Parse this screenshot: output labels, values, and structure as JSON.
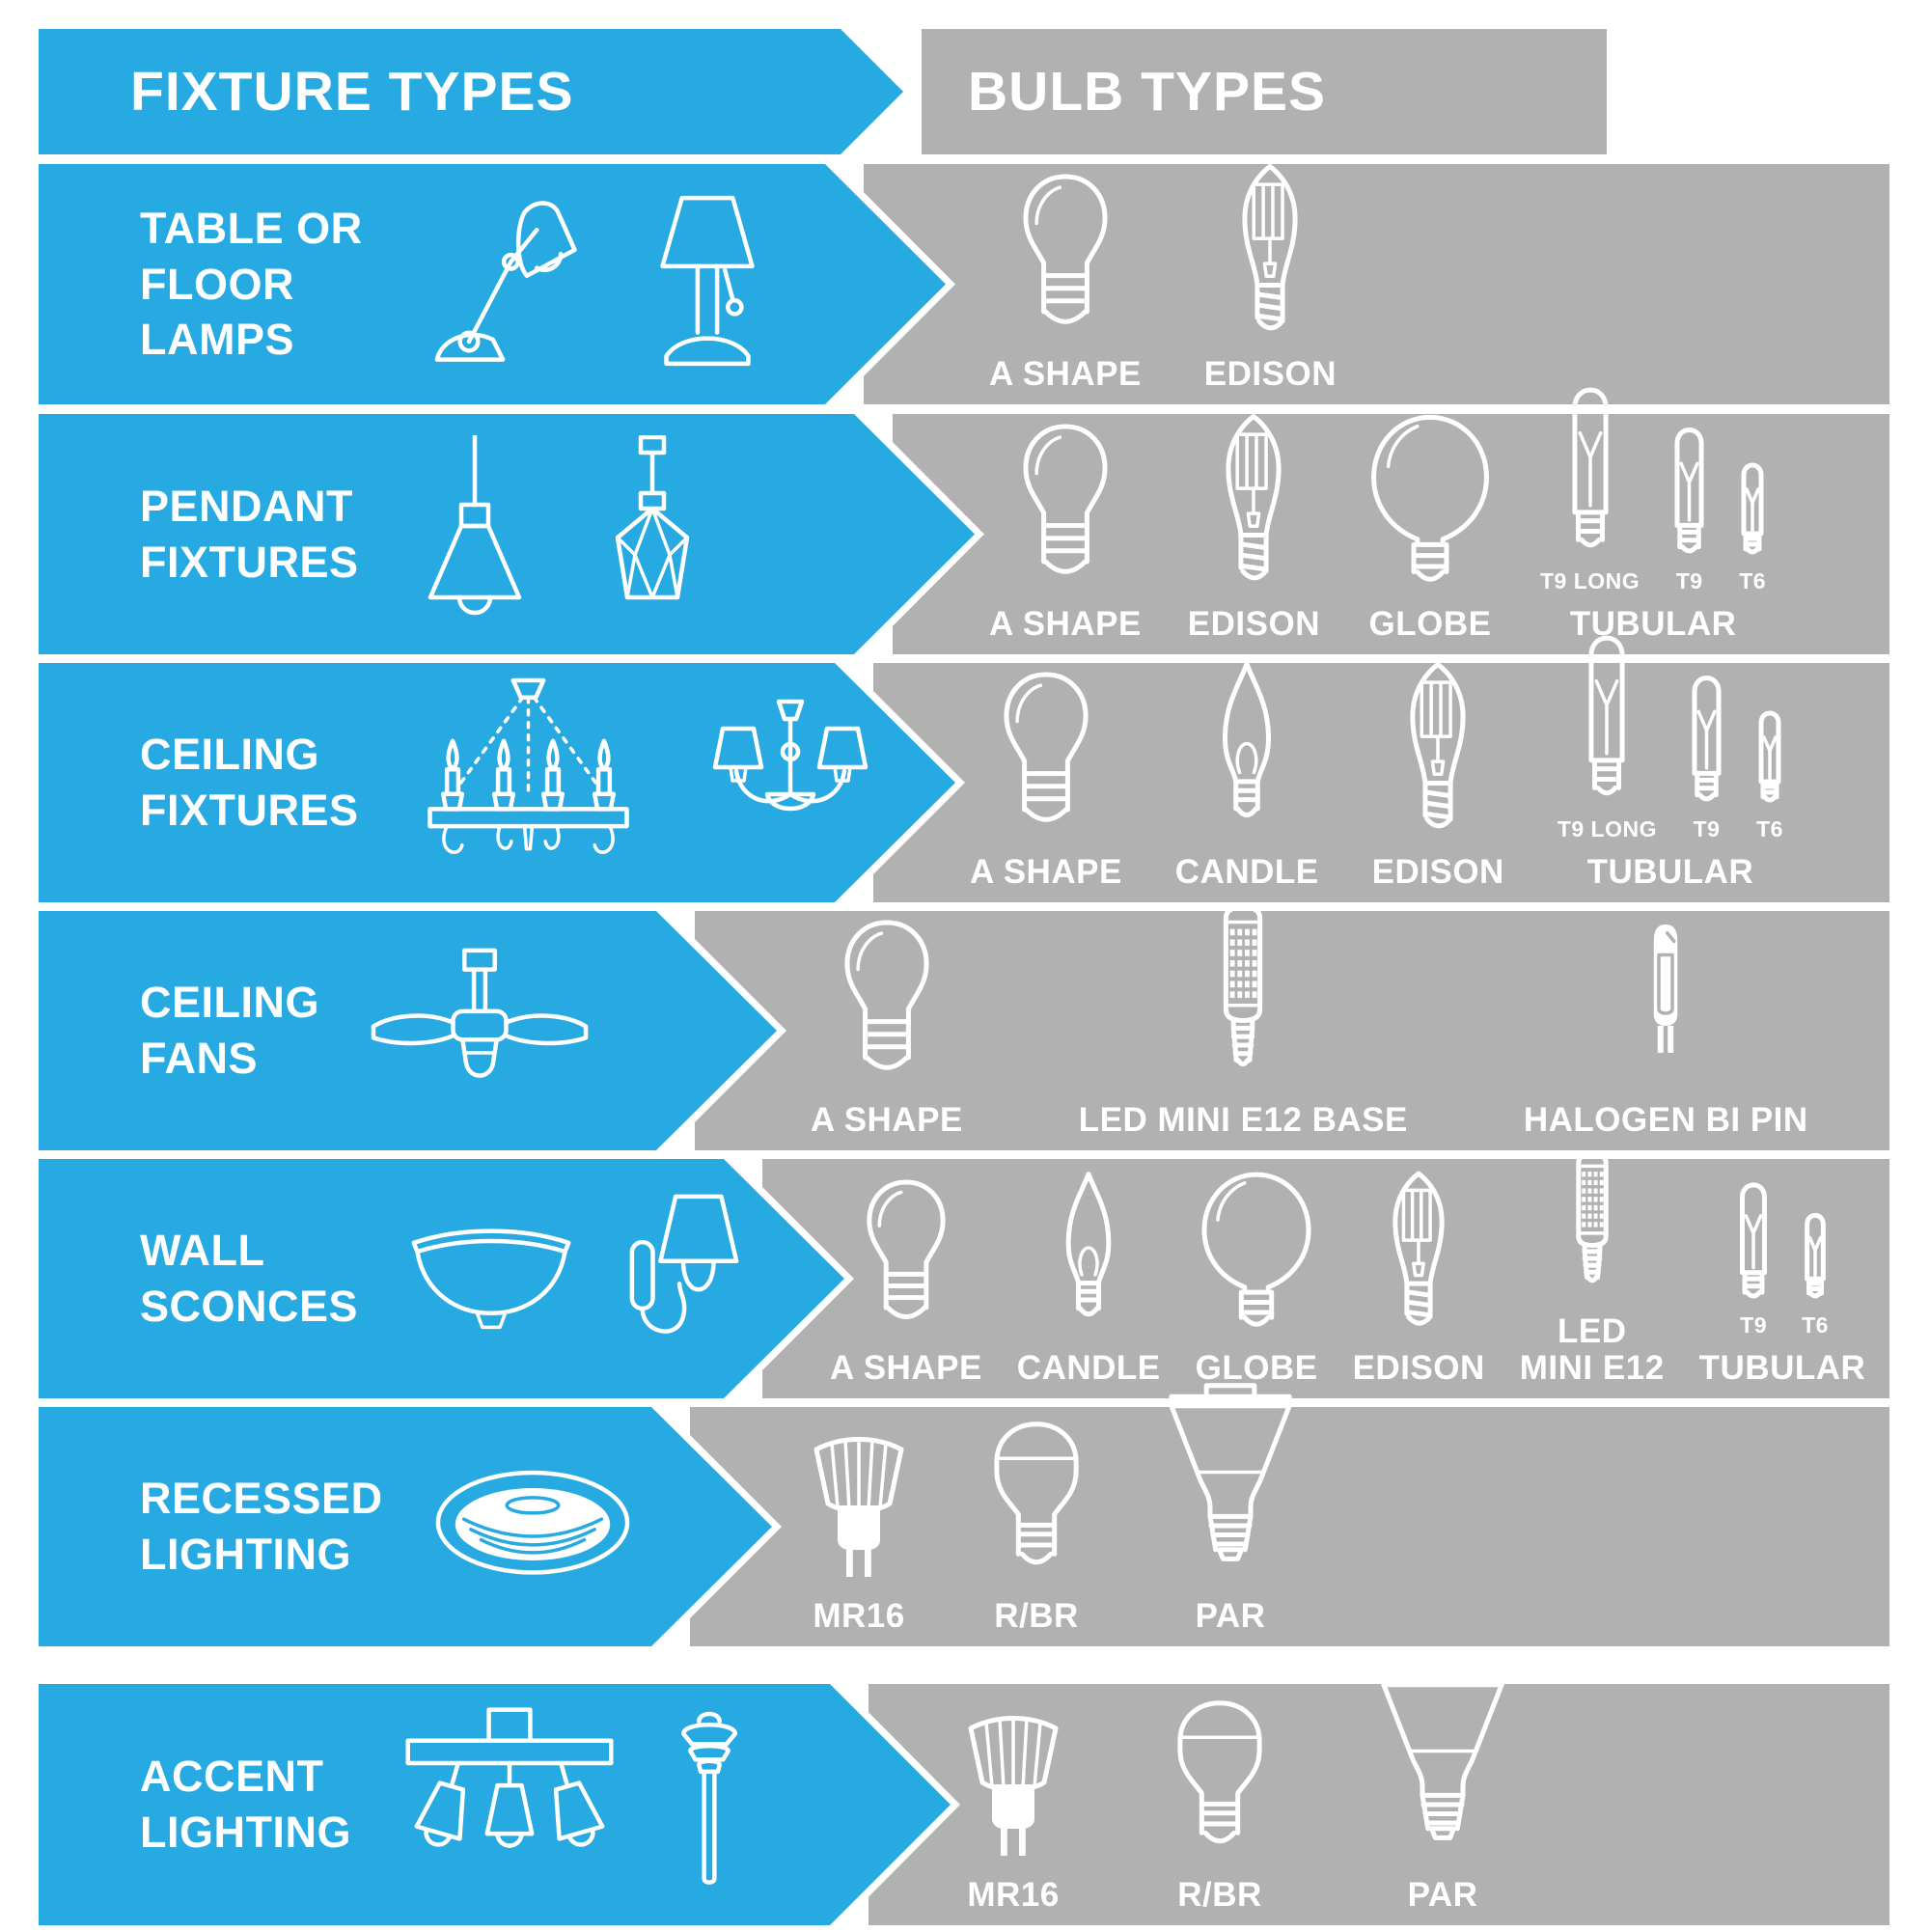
{
  "page": {
    "accent_blue": "#27a9e1",
    "panel_gray": "#b1b1b2",
    "text_color": "#ffffff"
  },
  "header": {
    "fixture_col_title": "FIXTURE TYPES",
    "bulb_col_title": "BULB TYPES"
  },
  "rows": [
    {
      "fixture": {
        "label": "TABLE OR\nFLOOR\nLAMPS",
        "icons": [
          "desk-lamp",
          "table-lamp"
        ]
      },
      "bulbs": [
        {
          "icon": "a-shape",
          "label": "A SHAPE"
        },
        {
          "icon": "edison",
          "label": "EDISON"
        }
      ]
    },
    {
      "fixture": {
        "label": "PENDANT\nFIXTURES",
        "icons": [
          "pendant-cone",
          "pendant-diamond"
        ]
      },
      "bulbs": [
        {
          "icon": "a-shape",
          "label": "A SHAPE"
        },
        {
          "icon": "edison",
          "label": "EDISON"
        },
        {
          "icon": "globe",
          "label": "GLOBE"
        },
        {
          "group": "TUBULAR",
          "items": [
            {
              "icon": "tubular-t9-long",
              "sub": "T9 LONG"
            },
            {
              "icon": "tubular-t9",
              "sub": "T9"
            },
            {
              "icon": "tubular-t6",
              "sub": "T6"
            }
          ]
        }
      ]
    },
    {
      "fixture": {
        "label": "CEILING\nFIXTURES",
        "icons": [
          "chandelier-candles",
          "chandelier-shades"
        ]
      },
      "bulbs": [
        {
          "icon": "a-shape",
          "label": "A SHAPE"
        },
        {
          "icon": "candle",
          "label": "CANDLE"
        },
        {
          "icon": "edison",
          "label": "EDISON"
        },
        {
          "group": "TUBULAR",
          "items": [
            {
              "icon": "tubular-t9-long",
              "sub": "T9 LONG"
            },
            {
              "icon": "tubular-t9",
              "sub": "T9"
            },
            {
              "icon": "tubular-t6",
              "sub": "T6"
            }
          ]
        }
      ]
    },
    {
      "fixture": {
        "label": "CEILING\nFANS",
        "icons": [
          "ceiling-fan"
        ]
      },
      "bulbs": [
        {
          "icon": "a-shape",
          "label": "A SHAPE"
        },
        {
          "icon": "led-mini-e12",
          "label": "LED MINI E12 BASE"
        },
        {
          "icon": "halogen-bi-pin",
          "label": "HALOGEN BI PIN"
        }
      ]
    },
    {
      "fixture": {
        "label": "WALL\nSCONCES",
        "icons": [
          "wall-sconce-bowl",
          "wall-sconce-shade"
        ]
      },
      "bulbs": [
        {
          "icon": "a-shape",
          "label": "A SHAPE"
        },
        {
          "icon": "candle",
          "label": "CANDLE"
        },
        {
          "icon": "globe",
          "label": "GLOBE"
        },
        {
          "icon": "edison",
          "label": "EDISON"
        },
        {
          "icon": "led-mini-e12",
          "label": "LED\nMINI E12"
        },
        {
          "group": "TUBULAR",
          "items": [
            {
              "icon": "tubular-t9",
              "sub": "T9"
            },
            {
              "icon": "tubular-t6",
              "sub": "T6"
            }
          ]
        }
      ]
    },
    {
      "fixture": {
        "label": "RECESSED\nLIGHTING",
        "icons": [
          "recessed-can"
        ]
      },
      "bulbs": [
        {
          "icon": "mr16",
          "label": "MR16"
        },
        {
          "icon": "r-br",
          "label": "R/BR"
        },
        {
          "icon": "par",
          "label": "PAR"
        }
      ]
    },
    {
      "fixture": {
        "label": "ACCENT\nLIGHTING",
        "icons": [
          "track-light",
          "path-light"
        ]
      },
      "bulbs": [
        {
          "icon": "mr16",
          "label": "MR16"
        },
        {
          "icon": "r-br",
          "label": "R/BR"
        },
        {
          "icon": "par",
          "label": "PAR"
        }
      ]
    }
  ]
}
